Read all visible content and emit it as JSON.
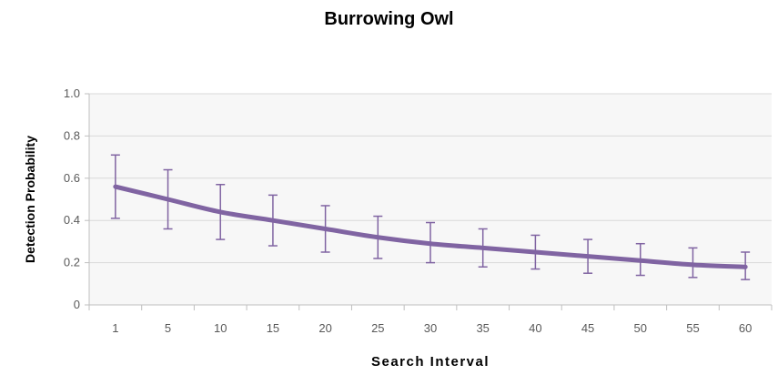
{
  "chart_data": {
    "type": "line",
    "title": "Burrowing Owl",
    "xlabel": "Search Interval",
    "ylabel": "Detection Probability",
    "categories": [
      "1",
      "5",
      "10",
      "15",
      "20",
      "25",
      "30",
      "35",
      "40",
      "45",
      "50",
      "55",
      "60"
    ],
    "series": [
      {
        "values": [
          0.56,
          0.5,
          0.44,
          0.4,
          0.36,
          0.32,
          0.29,
          0.27,
          0.25,
          0.23,
          0.21,
          0.19,
          0.18
        ],
        "lower": [
          0.41,
          0.36,
          0.31,
          0.28,
          0.25,
          0.22,
          0.2,
          0.18,
          0.17,
          0.15,
          0.14,
          0.13,
          0.12
        ],
        "upper": [
          0.71,
          0.64,
          0.57,
          0.52,
          0.47,
          0.42,
          0.39,
          0.36,
          0.33,
          0.31,
          0.29,
          0.27,
          0.25
        ]
      }
    ],
    "ylim": [
      0,
      1.0
    ],
    "yticks": [
      "0",
      "0.2",
      "0.4",
      "0.6",
      "0.8",
      "1.0"
    ],
    "grid": true,
    "colors": {
      "line": "#8064a2",
      "plot_background": "#f7f7f7",
      "grid": "#d9d9d9"
    }
  }
}
